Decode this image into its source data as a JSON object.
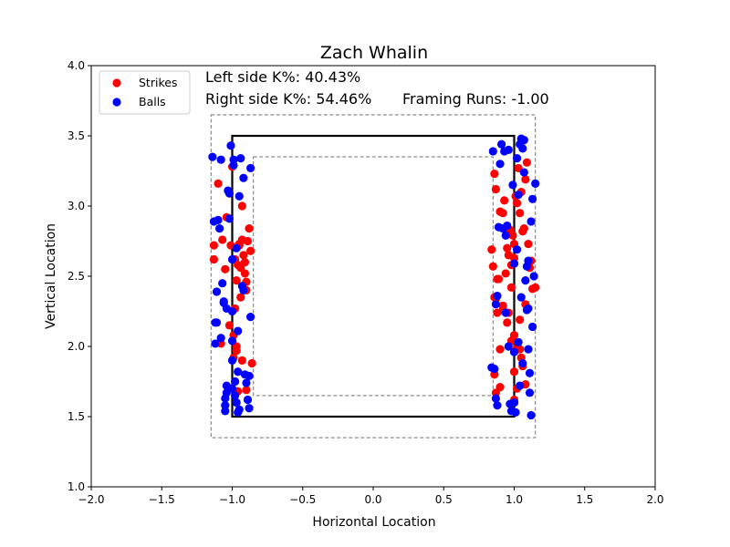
{
  "chart_data": {
    "type": "scatter",
    "title": "Zach Whalin",
    "xlabel": "Horizontal Location",
    "ylabel": "Vertical Location",
    "xlim": [
      -2.0,
      2.0
    ],
    "ylim": [
      1.0,
      4.0
    ],
    "xticks": [
      "−2.0",
      "−1.5",
      "−1.0",
      "−0.5",
      "0.0",
      "0.5",
      "1.0",
      "1.5",
      "2.0"
    ],
    "yticks": [
      "1.0",
      "1.5",
      "2.0",
      "2.5",
      "3.0",
      "3.5",
      "4.0"
    ],
    "legend": {
      "placement": "top-left"
    },
    "annotations": {
      "left_k": "Left side K%: 40.43%",
      "right_k": "Right side K%: 54.46%",
      "framing": "Framing Runs: -1.00"
    },
    "strike_zone": {
      "x": [
        -1.0,
        1.0
      ],
      "y": [
        1.5,
        3.5
      ]
    },
    "outer_zone": {
      "x": [
        -1.15,
        1.15
      ],
      "y": [
        1.35,
        3.65
      ]
    },
    "inner_zone": {
      "x": [
        -0.85,
        0.85
      ],
      "y": [
        1.65,
        3.35
      ]
    },
    "series": [
      {
        "name": "Strikes",
        "color": "#ff0000",
        "points": [
          [
            -1.13,
            2.72
          ],
          [
            -1.13,
            2.62
          ],
          [
            -1.1,
            3.16
          ],
          [
            -1.07,
            2.76
          ],
          [
            -1.05,
            2.55
          ],
          [
            -1.04,
            2.92
          ],
          [
            -1.02,
            2.15
          ],
          [
            -1.01,
            2.72
          ],
          [
            -0.99,
            1.92
          ],
          [
            -0.98,
            2.62
          ],
          [
            -0.97,
            2.47
          ],
          [
            -0.96,
            2.58
          ],
          [
            -0.95,
            2.73
          ],
          [
            -0.94,
            2.56
          ],
          [
            -0.93,
            2.76
          ],
          [
            -0.92,
            2.65
          ],
          [
            -0.91,
            2.6
          ],
          [
            -0.9,
            2.46
          ],
          [
            -0.9,
            2.4
          ],
          [
            -0.89,
            2.75
          ],
          [
            -0.88,
            2.84
          ],
          [
            -0.87,
            2.68
          ],
          [
            -0.86,
            1.88
          ],
          [
            -0.93,
            1.9
          ],
          [
            -0.9,
            1.69
          ],
          [
            -0.97,
            1.97
          ],
          [
            -0.98,
            2.27
          ],
          [
            -1.0,
            3.28
          ],
          [
            -0.96,
            1.68
          ],
          [
            -0.94,
            2.35
          ],
          [
            -1.08,
            2.02
          ],
          [
            -0.99,
            2.08
          ],
          [
            -0.93,
            3.0
          ],
          [
            -0.91,
            2.52
          ],
          [
            -0.97,
            2.0
          ],
          [
            -0.95,
            2.72
          ],
          [
            0.84,
            2.69
          ],
          [
            0.85,
            2.57
          ],
          [
            0.86,
            3.23
          ],
          [
            0.87,
            3.12
          ],
          [
            0.87,
            2.34
          ],
          [
            0.86,
            2.35
          ],
          [
            0.88,
            2.24
          ],
          [
            0.89,
            2.48
          ],
          [
            0.9,
            2.96
          ],
          [
            0.92,
            2.95
          ],
          [
            0.93,
            3.04
          ],
          [
            0.94,
            2.84
          ],
          [
            0.95,
            2.7
          ],
          [
            0.96,
            2.65
          ],
          [
            0.97,
            2.83
          ],
          [
            0.98,
            2.58
          ],
          [
            0.99,
            2.79
          ],
          [
            1.0,
            2.73
          ],
          [
            1.0,
            2.63
          ],
          [
            1.01,
            3.07
          ],
          [
            1.02,
            3.02
          ],
          [
            1.03,
            3.27
          ],
          [
            1.04,
            2.95
          ],
          [
            1.05,
            3.1
          ],
          [
            1.06,
            2.82
          ],
          [
            1.07,
            2.84
          ],
          [
            1.08,
            3.19
          ],
          [
            1.09,
            3.31
          ],
          [
            1.1,
            2.73
          ],
          [
            1.11,
            2.56
          ],
          [
            1.12,
            2.61
          ],
          [
            1.13,
            2.41
          ],
          [
            1.15,
            2.42
          ],
          [
            0.9,
            1.98
          ],
          [
            0.92,
            2.29
          ],
          [
            0.95,
            2.17
          ],
          [
            0.96,
            2.24
          ],
          [
            0.98,
            2.04
          ],
          [
            1.0,
            2.08
          ],
          [
            1.02,
            1.99
          ],
          [
            1.04,
            1.98
          ],
          [
            1.05,
            1.92
          ],
          [
            1.06,
            1.86
          ],
          [
            1.08,
            1.73
          ],
          [
            0.86,
            1.8
          ],
          [
            0.87,
            1.67
          ],
          [
            0.9,
            1.71
          ],
          [
            1.0,
            1.82
          ],
          [
            1.02,
            1.7
          ],
          [
            1.04,
            2.19
          ],
          [
            0.98,
            2.42
          ],
          [
            0.94,
            2.52
          ],
          [
            1.08,
            2.3
          ],
          [
            0.88,
            2.48
          ],
          [
            1.0,
            1.62
          ],
          [
            0.92,
            2.26
          ]
        ]
      },
      {
        "name": "Balls",
        "color": "#0000ff",
        "points": [
          [
            -1.14,
            3.35
          ],
          [
            -1.13,
            2.89
          ],
          [
            -1.12,
            2.17
          ],
          [
            -1.12,
            2.02
          ],
          [
            -1.11,
            2.39
          ],
          [
            -1.1,
            2.9
          ],
          [
            -1.09,
            2.84
          ],
          [
            -1.08,
            2.06
          ],
          [
            -1.07,
            2.45
          ],
          [
            -1.06,
            2.32
          ],
          [
            -1.05,
            1.58
          ],
          [
            -1.05,
            1.63
          ],
          [
            -1.05,
            1.54
          ],
          [
            -1.04,
            1.67
          ],
          [
            -1.04,
            1.72
          ],
          [
            -1.03,
            3.11
          ],
          [
            -1.02,
            2.91
          ],
          [
            -1.01,
            3.43
          ],
          [
            -1.0,
            1.9
          ],
          [
            -1.0,
            2.25
          ],
          [
            -0.99,
            3.33
          ],
          [
            -0.99,
            3.29
          ],
          [
            -0.98,
            1.75
          ],
          [
            -0.98,
            1.65
          ],
          [
            -0.97,
            2.7
          ],
          [
            -0.97,
            1.6
          ],
          [
            -0.96,
            1.53
          ],
          [
            -0.95,
            1.55
          ],
          [
            -0.94,
            3.34
          ],
          [
            -0.93,
            2.43
          ],
          [
            -0.92,
            3.2
          ],
          [
            -0.91,
            1.8
          ],
          [
            -0.9,
            1.74
          ],
          [
            -0.89,
            1.62
          ],
          [
            -0.88,
            1.79
          ],
          [
            -0.87,
            3.27
          ],
          [
            -0.87,
            2.21
          ],
          [
            -0.96,
            2.11
          ],
          [
            -1.11,
            2.17
          ],
          [
            -1.06,
            2.31
          ],
          [
            -1.0,
            2.62
          ],
          [
            -0.96,
            1.82
          ],
          [
            -1.04,
            2.27
          ],
          [
            -0.92,
            2.4
          ],
          [
            -1.0,
            2.04
          ],
          [
            -0.88,
            1.56
          ],
          [
            -0.95,
            3.07
          ],
          [
            -1.02,
            3.09
          ],
          [
            -1.08,
            3.33
          ],
          [
            -1.0,
            1.7
          ],
          [
            0.85,
            3.39
          ],
          [
            0.87,
            2.3
          ],
          [
            0.86,
            1.84
          ],
          [
            0.87,
            1.63
          ],
          [
            0.88,
            1.58
          ],
          [
            0.89,
            2.85
          ],
          [
            0.9,
            3.3
          ],
          [
            0.91,
            3.44
          ],
          [
            0.92,
            2.84
          ],
          [
            0.93,
            3.39
          ],
          [
            0.94,
            2.79
          ],
          [
            0.95,
            2.86
          ],
          [
            0.96,
            2.0
          ],
          [
            0.97,
            1.59
          ],
          [
            0.98,
            1.54
          ],
          [
            0.99,
            3.15
          ],
          [
            1.0,
            2.59
          ],
          [
            1.0,
            1.6
          ],
          [
            1.01,
            1.53
          ],
          [
            1.02,
            3.34
          ],
          [
            1.03,
            3.08
          ],
          [
            1.04,
            3.44
          ],
          [
            1.05,
            3.48
          ],
          [
            1.06,
            3.41
          ],
          [
            1.07,
            3.47
          ],
          [
            1.08,
            2.47
          ],
          [
            1.09,
            2.26
          ],
          [
            1.1,
            2.27
          ],
          [
            1.1,
            1.98
          ],
          [
            1.11,
            1.67
          ],
          [
            1.12,
            1.51
          ],
          [
            1.13,
            2.14
          ],
          [
            1.14,
            2.5
          ],
          [
            1.15,
            3.16
          ],
          [
            1.12,
            2.89
          ],
          [
            1.1,
            2.61
          ],
          [
            1.05,
            2.35
          ],
          [
            1.04,
            1.72
          ],
          [
            1.06,
            1.88
          ],
          [
            1.0,
            1.96
          ],
          [
            0.94,
            2.24
          ],
          [
            0.88,
            2.36
          ],
          [
            0.84,
            1.85
          ],
          [
            1.07,
            3.24
          ],
          [
            1.13,
            3.05
          ],
          [
            1.03,
            2.03
          ],
          [
            1.11,
            1.81
          ],
          [
            0.96,
            3.4
          ],
          [
            1.09,
            2.57
          ],
          [
            1.02,
            2.69
          ]
        ]
      }
    ]
  }
}
